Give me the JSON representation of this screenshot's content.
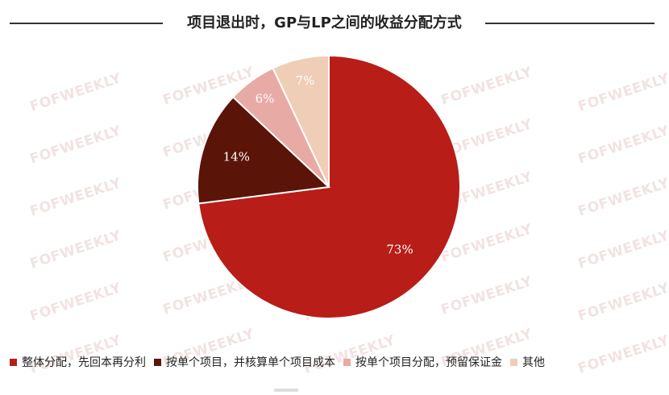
{
  "header": {
    "title": "项目退出时，GP与LP之间的收益分配方式"
  },
  "watermark": {
    "text": "FOFWEEKLY"
  },
  "colors": {
    "background": "#ffffff",
    "slice_border": "#ffffff",
    "label_text": "#ffffff",
    "label_text_light": "#ffffff"
  },
  "chart_data": {
    "type": "pie",
    "title": "项目退出时，GP与LP之间的收益分配方式",
    "start_angle_deg": 0,
    "direction": "clockwise",
    "legend_position": "bottom",
    "slices": [
      {
        "label": "整体分配，先回本再分利",
        "value": 73,
        "display": "73%",
        "color": "#b81d18"
      },
      {
        "label": "按单个项目，并核算单个项目成本",
        "value": 14,
        "display": "14%",
        "color": "#5a1408"
      },
      {
        "label": "按单个项目分配，预留保证金",
        "value": 6,
        "display": "6%",
        "color": "#e8aaa4"
      },
      {
        "label": "其他",
        "value": 7,
        "display": "7%",
        "color": "#f0cdb6"
      }
    ]
  }
}
